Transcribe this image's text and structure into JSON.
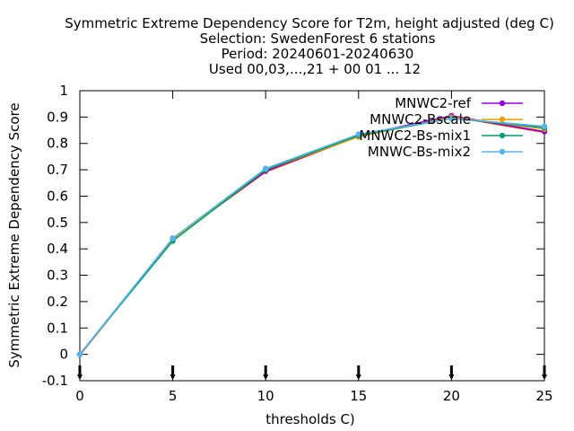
{
  "chart_data": {
    "type": "line",
    "title_lines": [
      "Symmetric Extreme Dependency Score  for T2m, height adjusted (deg C)",
      "Selection: SwedenForest      6 stations",
      "Period: 20240601-20240630",
      "Used 00,03,...,21 + 00 01 ... 12"
    ],
    "xlabel": "thresholds C)",
    "ylabel": "Symmetric Extreme Dependency Score",
    "xlim": [
      0,
      25
    ],
    "ylim": [
      -0.1,
      1
    ],
    "xticks": [
      "0",
      "5",
      "10",
      "15",
      "20",
      "25"
    ],
    "yticks": [
      "-0.1",
      "0",
      "0.1",
      "0.2",
      "0.3",
      "0.4",
      "0.5",
      "0.6",
      "0.7",
      "0.8",
      "0.9",
      "1"
    ],
    "grid": false,
    "legend_position": "top-right",
    "x": [
      0,
      5,
      10,
      15,
      20,
      25
    ],
    "series": [
      {
        "name": "MNWC2-ref",
        "color": "#9400d3",
        "values": [
          0.0,
          0.44,
          0.695,
          0.83,
          0.905,
          0.845
        ]
      },
      {
        "name": "MNWC2-Bscale",
        "color": "#e69f00",
        "values": [
          0.0,
          0.435,
          0.7,
          0.825,
          0.9,
          0.855
        ]
      },
      {
        "name": "MNWC2-Bs-mix1",
        "color": "#009e73",
        "values": [
          0.0,
          0.43,
          0.7,
          0.83,
          0.895,
          0.86
        ]
      },
      {
        "name": "MNWC-Bs-mix2",
        "color": "#56b4e9",
        "values": [
          0.0,
          0.44,
          0.705,
          0.835,
          0.895,
          0.865
        ]
      }
    ],
    "extra_line_color": "#e51e10"
  }
}
